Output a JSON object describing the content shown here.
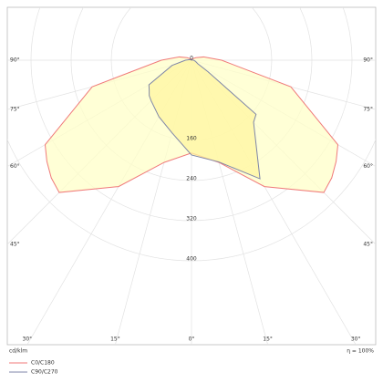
{
  "chart_data": {
    "type": "polar",
    "unit_label": "cd/klm",
    "efficiency_label": "η = 100%",
    "rlim": [
      0,
      560
    ],
    "rticks": [
      0,
      160,
      240,
      320,
      400
    ],
    "angles": [
      -150,
      -120,
      -105,
      -90,
      -75,
      -60,
      -55,
      -50,
      -45,
      -30,
      -15,
      0,
      15,
      30,
      45,
      50,
      55,
      60,
      75,
      90,
      105,
      120,
      150,
      180
    ],
    "angle_ticks": [
      {
        "value": -90,
        "label": "90°"
      },
      {
        "value": -75,
        "label": "75°"
      },
      {
        "value": -60,
        "label": "60°"
      },
      {
        "value": -45,
        "label": "45°"
      },
      {
        "value": -30,
        "label": "30°"
      },
      {
        "value": -15,
        "label": "15°"
      },
      {
        "value": 0,
        "label": "0°"
      },
      {
        "value": 15,
        "label": "15°"
      },
      {
        "value": 30,
        "label": "30°"
      },
      {
        "value": 45,
        "label": "45°"
      },
      {
        "value": 60,
        "label": "60°"
      },
      {
        "value": 75,
        "label": "75°"
      },
      {
        "value": 90,
        "label": "90°"
      }
    ],
    "grid": true,
    "series": [
      {
        "name": "C0/C180",
        "color": "#f07a7a",
        "fill": "#ffffc8",
        "values": [
          3,
          10,
          25,
          60,
          205,
          337,
          352,
          365,
          373,
          291,
          211,
          185,
          211,
          291,
          373,
          365,
          352,
          337,
          205,
          60,
          25,
          10,
          3,
          0
        ]
      },
      {
        "name": "C90/C270",
        "color": "#7f86a8",
        "fill": "#fff6a0",
        "values": [
          0,
          2,
          4,
          12,
          40,
          98,
          103,
          110,
          114,
          130,
          150,
          189,
          210,
          273,
          175,
          168,
          40,
          15,
          8,
          4,
          2,
          1,
          0,
          0
        ]
      }
    ]
  }
}
